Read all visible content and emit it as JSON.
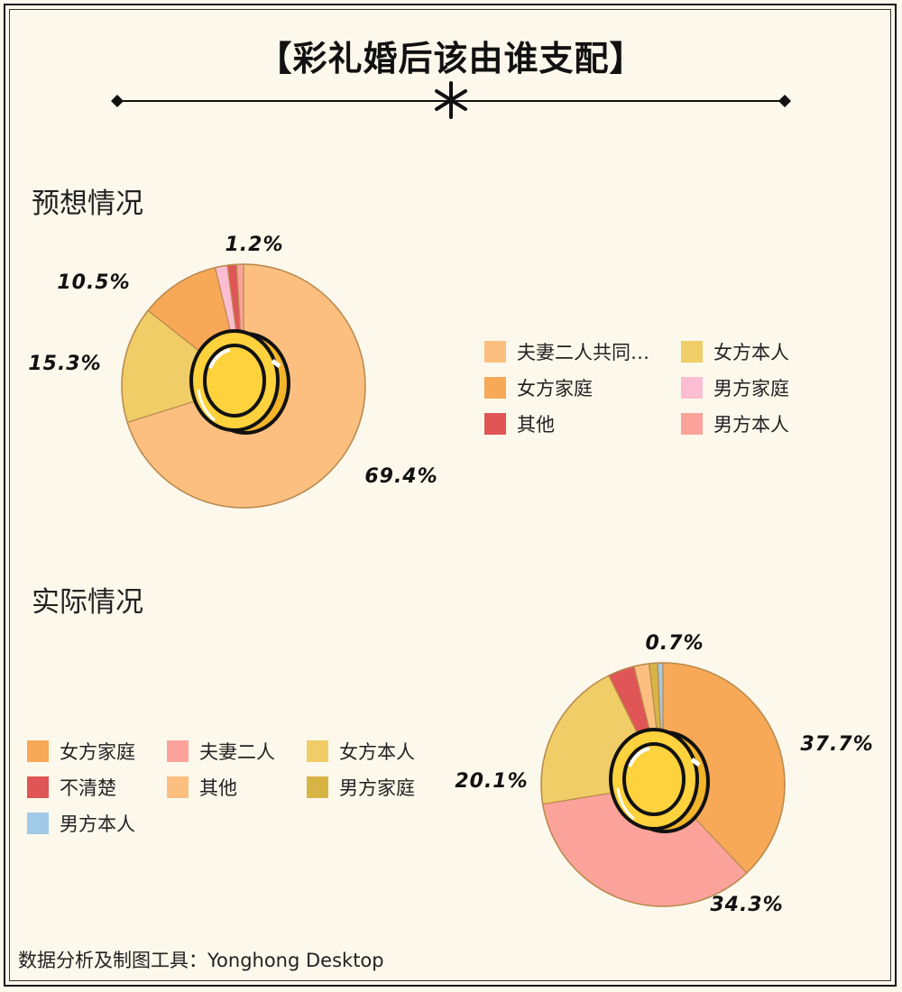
{
  "title": "【彩礼婚后该由谁支配】",
  "footer": "数据分析及制图工具：Yonghong Desktop",
  "colors": {
    "background": "#fdf8ec",
    "coin_fill": "#fdd23c",
    "coin_outline": "#111111"
  },
  "chart_data": [
    {
      "type": "pie",
      "title": "预想情况",
      "labels": [
        "夫妻二人共同…",
        "女方本人",
        "女方家庭",
        "男方家庭",
        "其他",
        "男方本人"
      ],
      "values": [
        69.4,
        15.3,
        10.5,
        1.6,
        1.2,
        0.9
      ],
      "value_labels": [
        "69.4%",
        "15.3%",
        "10.5%",
        "",
        "1.2%",
        ""
      ],
      "colors": [
        "#fdbf80",
        "#f0cd66",
        "#f8a957",
        "#fbbdd1",
        "#e05555",
        "#fba39a"
      ],
      "legend_position": "right"
    },
    {
      "type": "pie",
      "title": "实际情况",
      "labels": [
        "女方家庭",
        "夫妻二人",
        "女方本人",
        "不清楚",
        "其他",
        "男方家庭",
        "男方本人"
      ],
      "values": [
        37.7,
        34.3,
        20.1,
        3.5,
        2.0,
        1.1,
        0.7
      ],
      "value_labels": [
        "37.7%",
        "34.3%",
        "20.1%",
        "",
        "",
        "",
        "0.7%"
      ],
      "colors": [
        "#f8a957",
        "#fba39a",
        "#f0cd66",
        "#e05555",
        "#fdbf80",
        "#d8b445",
        "#a0cae8"
      ],
      "legend_position": "left"
    }
  ]
}
